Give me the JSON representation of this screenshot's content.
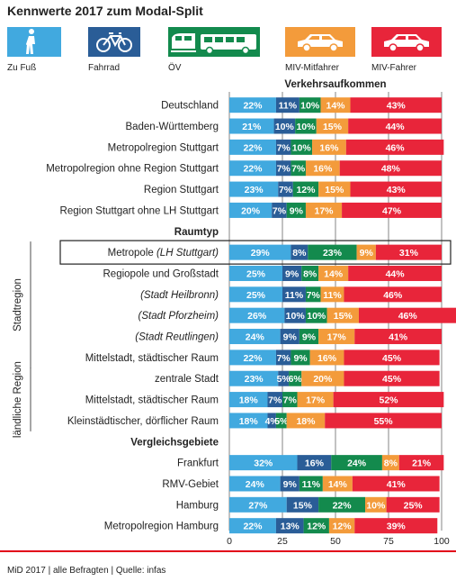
{
  "title": "Kennwerte 2017 zum Modal-Split",
  "footer": "MiD 2017 | alle Befragten | Quelle: infas",
  "colors": {
    "walk": "#41a9df",
    "bike": "#2a5d97",
    "pt": "#138a4d",
    "passenger": "#f39b3b",
    "driver": "#e8253a"
  },
  "legend": [
    {
      "key": "walk",
      "label": "Zu Fuß",
      "icon": "pedestrian-icon"
    },
    {
      "key": "bike",
      "label": "Fahrrad",
      "icon": "bicycle-icon"
    },
    {
      "key": "pt",
      "label": "ÖV",
      "icon": "train-bus-icon"
    },
    {
      "key": "passenger",
      "label": "MIV-Mitfahrer",
      "icon": "car-icon"
    },
    {
      "key": "driver",
      "label": "MIV-Fahrer",
      "icon": "car-icon"
    }
  ],
  "chart_data": {
    "type": "bar",
    "orientation": "horizontal",
    "stacked": true,
    "title": "Verkehrsaufkommen",
    "xlim": [
      0,
      100
    ],
    "xticks": [
      0,
      25,
      50,
      75,
      100
    ],
    "value_suffix": "%",
    "series_names": [
      "Zu Fuß",
      "Fahrrad",
      "ÖV",
      "MIV-Mitfahrer",
      "MIV-Fahrer"
    ],
    "group_labels": {
      "stadtregion": "Stadtregion",
      "laendlich": "ländliche Region"
    },
    "rows": [
      {
        "label": "Deutschland",
        "values": [
          22,
          11,
          10,
          14,
          43
        ]
      },
      {
        "label": "Baden-Württemberg",
        "values": [
          21,
          10,
          10,
          15,
          44
        ]
      },
      {
        "label": "Metropolregion Stuttgart",
        "values": [
          22,
          7,
          10,
          16,
          46
        ]
      },
      {
        "label": "Metropolregion ohne Region Stuttgart",
        "values": [
          22,
          7,
          7,
          16,
          48
        ]
      },
      {
        "label": "Region Stuttgart",
        "values": [
          23,
          7,
          12,
          15,
          43
        ]
      },
      {
        "label": "Region Stuttgart ohne LH Stuttgart",
        "values": [
          20,
          7,
          9,
          17,
          47
        ]
      },
      {
        "label": "Raumtyp",
        "heading": true
      },
      {
        "label": "Metropole",
        "label_suffix": "(LH Stuttgart)",
        "values": [
          29,
          8,
          23,
          9,
          31
        ],
        "highlight": true
      },
      {
        "label": "Regiopole und Großstadt",
        "values": [
          25,
          9,
          8,
          14,
          44
        ]
      },
      {
        "label": "(Stadt Heilbronn)",
        "italic": true,
        "values": [
          25,
          11,
          7,
          11,
          46
        ]
      },
      {
        "label": "(Stadt Pforzheim)",
        "italic": true,
        "values": [
          26,
          10,
          10,
          15,
          46
        ]
      },
      {
        "label": "(Stadt Reutlingen)",
        "italic": true,
        "values": [
          24,
          9,
          9,
          17,
          41
        ]
      },
      {
        "label": "Mittelstadt, städtischer Raum",
        "values": [
          22,
          7,
          9,
          16,
          45
        ]
      },
      {
        "label": "zentrale Stadt",
        "values": [
          23,
          5,
          6,
          20,
          45
        ]
      },
      {
        "label": "Mittelstadt, städtischer Raum",
        "values": [
          18,
          7,
          7,
          17,
          52
        ]
      },
      {
        "label": "Kleinstädtischer, dörflicher Raum",
        "values": [
          18,
          4,
          5,
          18,
          55
        ]
      },
      {
        "label": "Vergleichsgebiete",
        "heading": true
      },
      {
        "label": "Frankfurt",
        "values": [
          32,
          16,
          24,
          8,
          21
        ]
      },
      {
        "label": "RMV-Gebiet",
        "values": [
          24,
          9,
          11,
          14,
          41
        ]
      },
      {
        "label": "Hamburg",
        "values": [
          27,
          15,
          22,
          10,
          25
        ]
      },
      {
        "label": "Metropolregion Hamburg",
        "values": [
          22,
          13,
          12,
          12,
          39
        ]
      }
    ]
  }
}
